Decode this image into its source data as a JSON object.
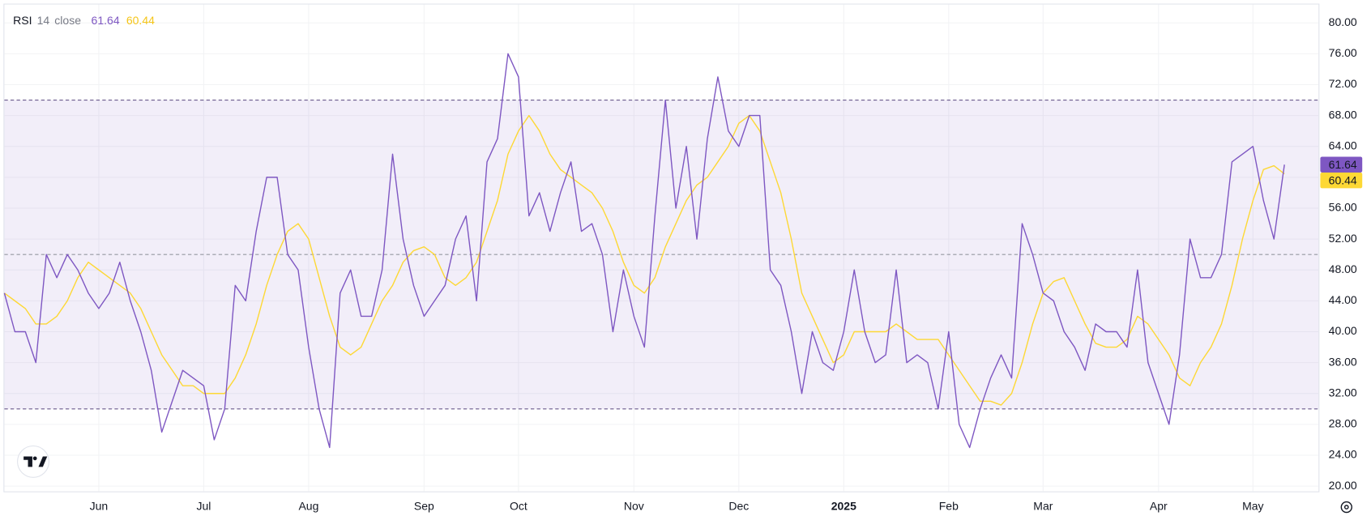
{
  "chart_data": {
    "type": "line",
    "indicator": {
      "name": "RSI",
      "length": "14",
      "source": "close"
    },
    "categories": [
      null,
      null,
      null,
      null,
      null,
      null,
      null,
      null,
      null,
      "Jun",
      null,
      null,
      null,
      null,
      null,
      null,
      null,
      null,
      null,
      "Jul",
      null,
      null,
      null,
      null,
      null,
      null,
      null,
      null,
      null,
      "Aug",
      null,
      null,
      null,
      null,
      null,
      null,
      null,
      null,
      null,
      null,
      "Sep",
      null,
      null,
      null,
      null,
      null,
      null,
      null,
      null,
      "Oct",
      null,
      null,
      null,
      null,
      null,
      null,
      null,
      null,
      null,
      null,
      "Nov",
      null,
      null,
      null,
      null,
      null,
      null,
      null,
      null,
      null,
      "Dec",
      null,
      null,
      null,
      null,
      null,
      null,
      null,
      null,
      null,
      "2025",
      null,
      null,
      null,
      null,
      null,
      null,
      null,
      null,
      null,
      "Feb",
      null,
      null,
      null,
      null,
      null,
      null,
      null,
      null,
      "Mar",
      null,
      null,
      null,
      null,
      null,
      null,
      null,
      null,
      null,
      null,
      "Apr",
      null,
      null,
      null,
      null,
      null,
      null,
      null,
      null,
      "May",
      null,
      null,
      null
    ],
    "series": [
      {
        "color": "#7e57c2",
        "values": [
          45,
          40,
          40,
          36,
          50,
          47,
          50,
          48,
          45,
          43,
          45,
          49,
          44,
          40,
          35,
          27,
          31,
          35,
          34,
          33,
          26,
          30,
          46,
          44,
          53,
          60,
          60,
          50,
          48,
          38,
          30,
          25,
          45,
          48,
          42,
          42,
          48,
          63,
          52,
          46,
          42,
          44,
          46,
          52,
          55,
          44,
          62,
          65,
          76,
          73,
          55,
          58,
          53,
          58,
          62,
          53,
          54,
          50,
          40,
          48,
          42,
          38,
          55,
          70,
          56,
          64,
          52,
          65,
          73,
          66,
          64,
          68,
          68,
          48,
          46,
          40,
          32,
          40,
          36,
          35,
          40,
          48,
          40,
          36,
          37,
          48,
          36,
          37,
          36,
          30,
          40,
          28,
          25,
          30,
          34,
          37,
          34,
          54,
          50,
          45,
          44,
          40,
          38,
          35,
          41,
          40,
          40,
          38,
          48,
          36,
          32,
          28,
          37,
          52,
          47,
          47,
          50,
          62,
          63,
          64,
          57,
          52,
          61.64
        ]
      },
      {
        "color": "#fdd835",
        "values": [
          45,
          44,
          43,
          41,
          41,
          42,
          44,
          47,
          49,
          48,
          47,
          46,
          45,
          43,
          40,
          37,
          35,
          33,
          33,
          32,
          32,
          32,
          34,
          37,
          41,
          46,
          50,
          53,
          54,
          52,
          47,
          42,
          38,
          37,
          38,
          41,
          44,
          46,
          49,
          50.5,
          51,
          50,
          47,
          46,
          47,
          49,
          53,
          57,
          63,
          66,
          68,
          66,
          63,
          61,
          60,
          59,
          58,
          56,
          53,
          49,
          46,
          45,
          47,
          51,
          54,
          57,
          59,
          60,
          62,
          64,
          67,
          68,
          66,
          62,
          58,
          52,
          45,
          42,
          39,
          36,
          37,
          40,
          40,
          40,
          40,
          41,
          40,
          39,
          39,
          39,
          37,
          35,
          33,
          31,
          31,
          30.5,
          32,
          36,
          41,
          45,
          46.5,
          47,
          44,
          41,
          38.5,
          38,
          38,
          39,
          42,
          41,
          39,
          37,
          34,
          33,
          36,
          38,
          41,
          46,
          52,
          57,
          61,
          61.5,
          60.44
        ]
      }
    ],
    "levels": [
      70,
      50,
      30
    ],
    "band_color": "#7e57c2",
    "ylim": [
      20,
      80
    ],
    "yticks": [
      {
        "value": 20,
        "label": "20.00"
      },
      {
        "value": 24,
        "label": "24.00"
      },
      {
        "value": 28,
        "label": "28.00"
      },
      {
        "value": 32,
        "label": "32.00"
      },
      {
        "value": 36,
        "label": "36.00"
      },
      {
        "value": 40,
        "label": "40.00"
      },
      {
        "value": 44,
        "label": "44.00"
      },
      {
        "value": 48,
        "label": "48.00"
      },
      {
        "value": 52,
        "label": "52.00"
      },
      {
        "value": 56,
        "label": "56.00"
      },
      {
        "value": 60,
        "label": "60.00"
      },
      {
        "value": 64,
        "label": "64.00"
      },
      {
        "value": 68,
        "label": "68.00"
      },
      {
        "value": 72,
        "label": "72.00"
      },
      {
        "value": 76,
        "label": "76.00"
      },
      {
        "value": 80,
        "label": "80.00"
      }
    ],
    "grid": true
  }
}
